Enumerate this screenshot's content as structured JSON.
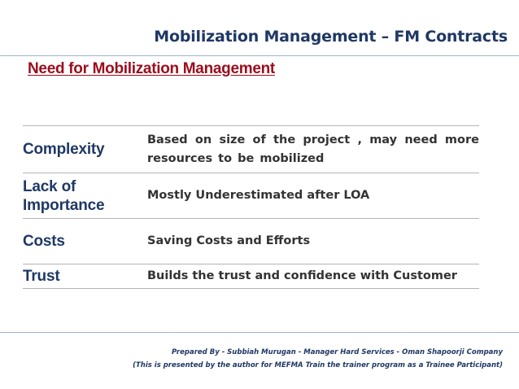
{
  "header": {
    "title": "Mobilization Management – FM Contracts",
    "subtitle": "Need for Mobilization Management"
  },
  "table": {
    "rows": [
      {
        "label": "Complexity",
        "description": "Based on size of the project , may need more resources to be mobilized"
      },
      {
        "label": "Lack of Importance",
        "description": "Mostly Underestimated after LOA"
      },
      {
        "label": "Costs",
        "description": "Saving Costs and Efforts"
      },
      {
        "label": "Trust",
        "description": "Builds the trust and confidence with Customer"
      }
    ]
  },
  "footer": {
    "prepared_by": "Prepared By - Subbiah Murugan - Manager Hard Services - Oman Shapoorji Company",
    "note": "(This is presented by the author for MEFMA Train the trainer program as a Trainee Participant)"
  },
  "colors": {
    "title": "#1f3864",
    "subtitle": "#9b0d1d",
    "label": "#1f3864",
    "rule": "#9fb2cf"
  }
}
